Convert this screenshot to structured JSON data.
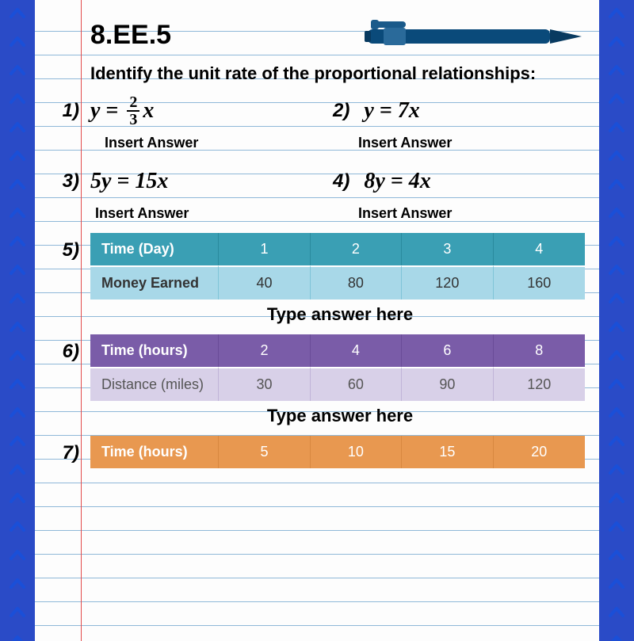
{
  "chevron": {
    "color": "#1a4fd8",
    "count": 23
  },
  "header": {
    "standard": "8.EE.5",
    "instruction": "Identify the unit rate of the proportional relationships:"
  },
  "pen": {
    "body_color": "#0a4a7a",
    "band_color": "#2a6a9a",
    "cap_color": "#083a60"
  },
  "questions": {
    "q1": {
      "num": "1)",
      "lhs": "y",
      "frac_num": "2",
      "frac_den": "3",
      "rhs": "x",
      "answer_placeholder": "Insert Answer"
    },
    "q2": {
      "num": "2)",
      "equation": "y = 7x",
      "answer_placeholder": "Insert Answer"
    },
    "q3": {
      "num": "3)",
      "equation": "5y = 15x",
      "answer_placeholder": "Insert Answer"
    },
    "q4": {
      "num": "4)",
      "equation": "8y = 4x",
      "answer_placeholder": "Insert Answer"
    },
    "q5": {
      "num": "5)",
      "header_color": "#3a9fb4",
      "body_color": "#a8d8e8",
      "row1_label": "Time (Day)",
      "row2_label": "Money Earned",
      "cols": [
        "1",
        "2",
        "3",
        "4"
      ],
      "vals": [
        "40",
        "80",
        "120",
        "160"
      ],
      "answer_placeholder": "Type answer here"
    },
    "q6": {
      "num": "6)",
      "header_color": "#7a5ca8",
      "body_color": "#d8d0e8",
      "row1_label": "Time (hours)",
      "row2_label": "Distance (miles)",
      "cols": [
        "2",
        "4",
        "6",
        "8"
      ],
      "vals": [
        "30",
        "60",
        "90",
        "120"
      ],
      "answer_placeholder": "Type answer here"
    },
    "q7": {
      "num": "7)",
      "header_color": "#e89850",
      "row1_label": "Time (hours)",
      "cols": [
        "5",
        "10",
        "15",
        "20"
      ]
    }
  },
  "paper": {
    "rule_color": "#8fb8d8",
    "margin_color": "#e24a4a",
    "background": "#fdfdfd"
  }
}
